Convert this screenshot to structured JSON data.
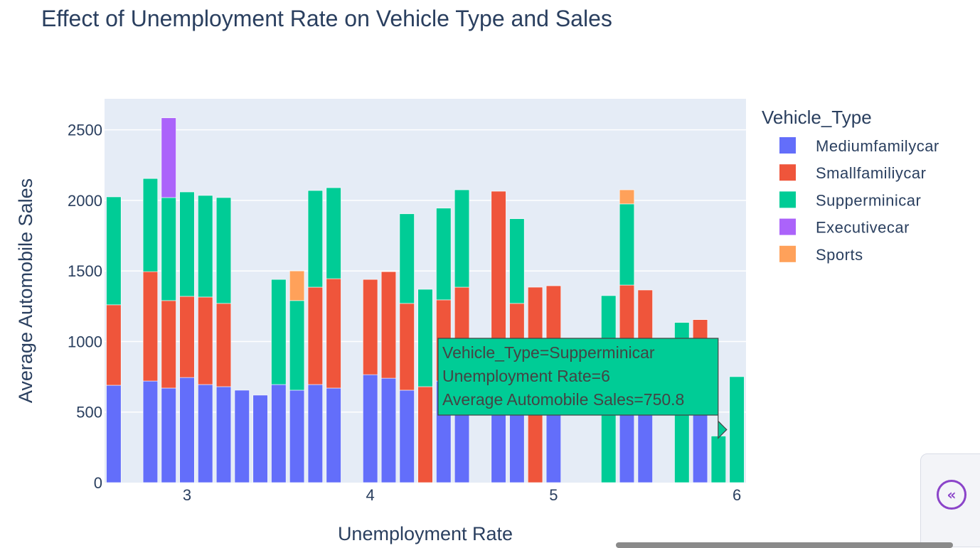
{
  "chart_data": {
    "type": "bar",
    "barmode": "stack",
    "title": "Effect of Unemployment Rate on Vehicle Type and Sales",
    "xlabel": "Unemployment Rate",
    "ylabel": "Average Automobile Sales",
    "xlim": [
      2.55,
      6.05
    ],
    "ylim": [
      0,
      2720
    ],
    "xticks": [
      3,
      4,
      5,
      6
    ],
    "yticks": [
      0,
      500,
      1000,
      1500,
      2000,
      2500
    ],
    "grid": true,
    "legend": {
      "title": "Vehicle_Type",
      "position": "right"
    },
    "x": [
      2.6,
      2.8,
      2.9,
      3.0,
      3.1,
      3.2,
      3.3,
      3.4,
      3.5,
      3.6,
      3.7,
      3.8,
      4.0,
      4.1,
      4.2,
      4.3,
      4.4,
      4.5,
      4.6,
      4.7,
      4.8,
      4.9,
      5.0,
      5.2,
      5.3,
      5.4,
      5.5,
      5.6,
      5.7,
      5.8,
      5.9,
      6.0
    ],
    "series": [
      {
        "name": "Mediumfamilycar",
        "color": "#636efa",
        "values": [
          690,
          720,
          670,
          745,
          695,
          680,
          655,
          620,
          695,
          655,
          695,
          670,
          765,
          740,
          655,
          0,
          720,
          700,
          0,
          680,
          690,
          0,
          700,
          0,
          0,
          720,
          700,
          0,
          0,
          700,
          0,
          0
        ]
      },
      {
        "name": "Smallfamiliycar",
        "color": "#ef553b",
        "values": [
          570,
          775,
          620,
          575,
          620,
          590,
          0,
          0,
          0,
          0,
          690,
          775,
          675,
          755,
          615,
          680,
          575,
          685,
          0,
          1385,
          580,
          1385,
          695,
          0,
          0,
          680,
          665,
          0,
          0,
          455,
          0,
          0
        ]
      },
      {
        "name": "Supperminicar",
        "color": "#00cc96",
        "values": [
          765,
          660,
          730,
          740,
          720,
          750,
          0,
          0,
          745,
          635,
          685,
          645,
          0,
          0,
          635,
          690,
          650,
          690,
          0,
          0,
          600,
          0,
          0,
          0,
          1325,
          575,
          0,
          0,
          1135,
          0,
          330,
          750.8
        ]
      },
      {
        "name": "Executivecar",
        "color": "#ab63fa",
        "values": [
          0,
          0,
          565,
          0,
          0,
          0,
          0,
          0,
          0,
          0,
          0,
          0,
          0,
          0,
          0,
          0,
          0,
          0,
          0,
          0,
          0,
          0,
          0,
          0,
          0,
          0,
          0,
          0,
          0,
          0,
          0,
          0
        ]
      },
      {
        "name": "Sports",
        "color": "#ffa15a",
        "values": [
          0,
          0,
          0,
          0,
          0,
          0,
          0,
          0,
          0,
          210,
          0,
          0,
          0,
          0,
          0,
          0,
          0,
          0,
          0,
          0,
          0,
          0,
          0,
          0,
          0,
          100,
          0,
          0,
          0,
          0,
          0,
          0
        ]
      }
    ],
    "hover": {
      "series_index": 2,
      "x": 6.0,
      "lines": [
        "Vehicle_Type=Supperminicar",
        "Unemployment Rate=6",
        "Average Automobile Sales=750.8"
      ]
    }
  },
  "colors": {
    "plot_bg": "#e5ecf6",
    "grid": "#ffffff",
    "text": "#2a3f5f",
    "accent": "#8b44c9"
  },
  "icons": {
    "collapse": "double-chevron-left-icon",
    "collapse_glyph": "«"
  }
}
